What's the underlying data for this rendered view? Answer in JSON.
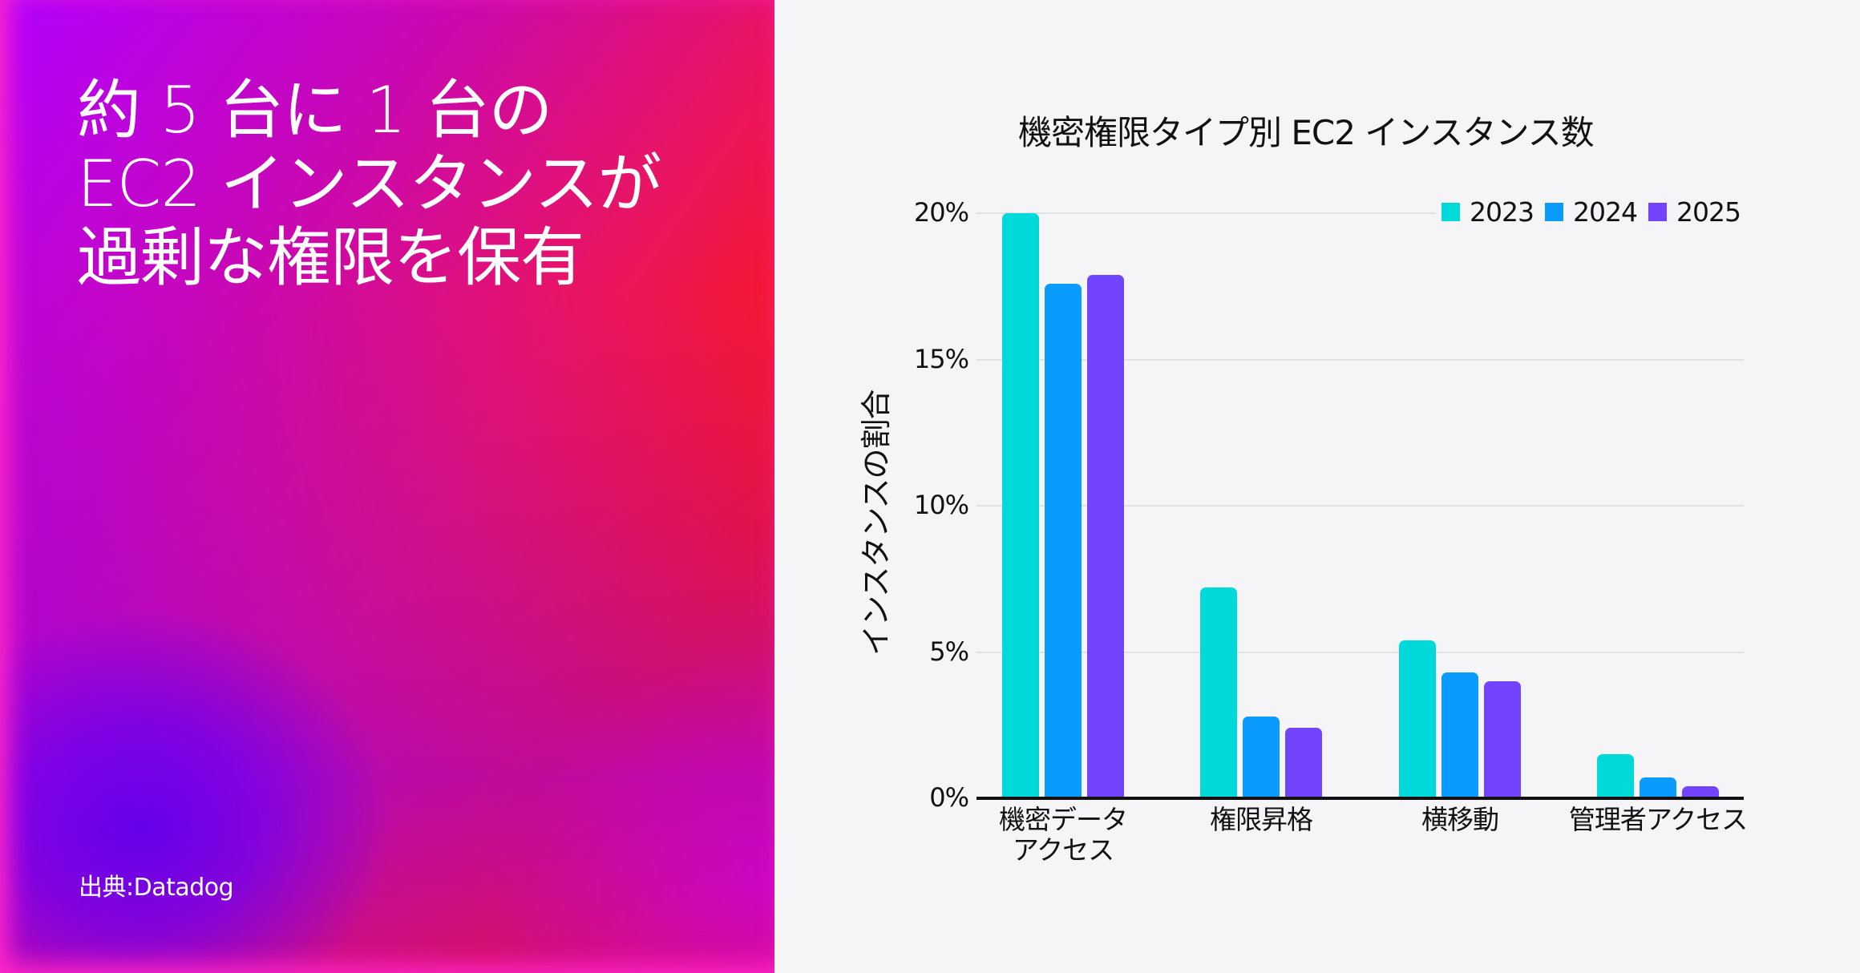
{
  "left_panel": {
    "headline_lines": [
      "約 5 台に 1 台の",
      "EC2 インスタンスが",
      "過剰な権限を保有"
    ],
    "source": "出典:Datadog"
  },
  "colors": {
    "series_2023": "#00d9d9",
    "series_2024": "#0a9bff",
    "series_2025": "#7344ff",
    "right_background": "#f5f5f7"
  },
  "chart": {
    "title": "機密権限タイプ別 EC2 インスタンス数",
    "ylabel": "インスタンスの割合",
    "yticks": [
      "0%",
      "5%",
      "10%",
      "15%",
      "20%"
    ],
    "legend": [
      "2023",
      "2024",
      "2025"
    ],
    "categories": [
      {
        "line1": "機密データ",
        "line2": "アクセス"
      },
      {
        "line1": "権限昇格",
        "line2": ""
      },
      {
        "line1": "横移動",
        "line2": ""
      },
      {
        "line1": "管理者アクセス",
        "line2": ""
      }
    ]
  },
  "chart_data": {
    "type": "bar",
    "title": "機密権限タイプ別 EC2 インスタンス数",
    "xlabel": "",
    "ylabel": "インスタンスの割合",
    "categories": [
      "機密データアクセス",
      "権限昇格",
      "横移動",
      "管理者アクセス"
    ],
    "series": [
      {
        "name": "2023",
        "color": "#00d9d9",
        "values": [
          20.0,
          7.2,
          5.4,
          1.5
        ]
      },
      {
        "name": "2024",
        "color": "#0a9bff",
        "values": [
          17.6,
          2.8,
          4.3,
          0.7
        ]
      },
      {
        "name": "2025",
        "color": "#7344ff",
        "values": [
          17.9,
          2.4,
          4.0,
          0.4
        ]
      }
    ],
    "ylim": [
      0,
      20
    ],
    "yticks": [
      0,
      5,
      10,
      15,
      20
    ],
    "ytick_format": "percent",
    "grid": "horizontal",
    "legend_position": "top-right"
  }
}
